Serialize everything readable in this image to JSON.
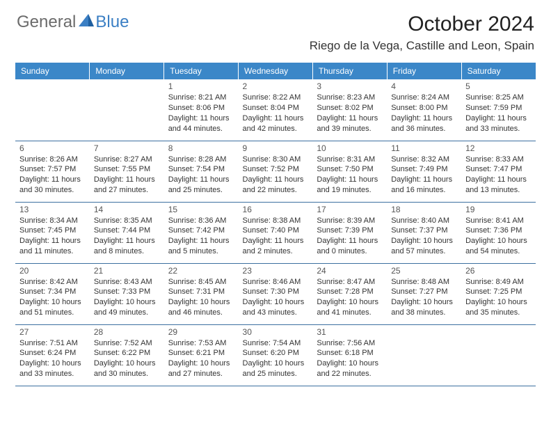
{
  "logo": {
    "general": "General",
    "blue": "Blue"
  },
  "title": "October 2024",
  "location": "Riego de la Vega, Castille and Leon, Spain",
  "colors": {
    "header_bg": "#3b87c8",
    "header_text": "#ffffff",
    "row_border": "#3b6fa0",
    "logo_gray": "#6b6b6b",
    "logo_blue": "#3b7fc4",
    "body_text": "#333333"
  },
  "weekdays": [
    "Sunday",
    "Monday",
    "Tuesday",
    "Wednesday",
    "Thursday",
    "Friday",
    "Saturday"
  ],
  "weeks": [
    [
      null,
      null,
      {
        "n": "1",
        "sr": "8:21 AM",
        "ss": "8:06 PM",
        "dl": "11 hours and 44 minutes."
      },
      {
        "n": "2",
        "sr": "8:22 AM",
        "ss": "8:04 PM",
        "dl": "11 hours and 42 minutes."
      },
      {
        "n": "3",
        "sr": "8:23 AM",
        "ss": "8:02 PM",
        "dl": "11 hours and 39 minutes."
      },
      {
        "n": "4",
        "sr": "8:24 AM",
        "ss": "8:00 PM",
        "dl": "11 hours and 36 minutes."
      },
      {
        "n": "5",
        "sr": "8:25 AM",
        "ss": "7:59 PM",
        "dl": "11 hours and 33 minutes."
      }
    ],
    [
      {
        "n": "6",
        "sr": "8:26 AM",
        "ss": "7:57 PM",
        "dl": "11 hours and 30 minutes."
      },
      {
        "n": "7",
        "sr": "8:27 AM",
        "ss": "7:55 PM",
        "dl": "11 hours and 27 minutes."
      },
      {
        "n": "8",
        "sr": "8:28 AM",
        "ss": "7:54 PM",
        "dl": "11 hours and 25 minutes."
      },
      {
        "n": "9",
        "sr": "8:30 AM",
        "ss": "7:52 PM",
        "dl": "11 hours and 22 minutes."
      },
      {
        "n": "10",
        "sr": "8:31 AM",
        "ss": "7:50 PM",
        "dl": "11 hours and 19 minutes."
      },
      {
        "n": "11",
        "sr": "8:32 AM",
        "ss": "7:49 PM",
        "dl": "11 hours and 16 minutes."
      },
      {
        "n": "12",
        "sr": "8:33 AM",
        "ss": "7:47 PM",
        "dl": "11 hours and 13 minutes."
      }
    ],
    [
      {
        "n": "13",
        "sr": "8:34 AM",
        "ss": "7:45 PM",
        "dl": "11 hours and 11 minutes."
      },
      {
        "n": "14",
        "sr": "8:35 AM",
        "ss": "7:44 PM",
        "dl": "11 hours and 8 minutes."
      },
      {
        "n": "15",
        "sr": "8:36 AM",
        "ss": "7:42 PM",
        "dl": "11 hours and 5 minutes."
      },
      {
        "n": "16",
        "sr": "8:38 AM",
        "ss": "7:40 PM",
        "dl": "11 hours and 2 minutes."
      },
      {
        "n": "17",
        "sr": "8:39 AM",
        "ss": "7:39 PM",
        "dl": "11 hours and 0 minutes."
      },
      {
        "n": "18",
        "sr": "8:40 AM",
        "ss": "7:37 PM",
        "dl": "10 hours and 57 minutes."
      },
      {
        "n": "19",
        "sr": "8:41 AM",
        "ss": "7:36 PM",
        "dl": "10 hours and 54 minutes."
      }
    ],
    [
      {
        "n": "20",
        "sr": "8:42 AM",
        "ss": "7:34 PM",
        "dl": "10 hours and 51 minutes."
      },
      {
        "n": "21",
        "sr": "8:43 AM",
        "ss": "7:33 PM",
        "dl": "10 hours and 49 minutes."
      },
      {
        "n": "22",
        "sr": "8:45 AM",
        "ss": "7:31 PM",
        "dl": "10 hours and 46 minutes."
      },
      {
        "n": "23",
        "sr": "8:46 AM",
        "ss": "7:30 PM",
        "dl": "10 hours and 43 minutes."
      },
      {
        "n": "24",
        "sr": "8:47 AM",
        "ss": "7:28 PM",
        "dl": "10 hours and 41 minutes."
      },
      {
        "n": "25",
        "sr": "8:48 AM",
        "ss": "7:27 PM",
        "dl": "10 hours and 38 minutes."
      },
      {
        "n": "26",
        "sr": "8:49 AM",
        "ss": "7:25 PM",
        "dl": "10 hours and 35 minutes."
      }
    ],
    [
      {
        "n": "27",
        "sr": "7:51 AM",
        "ss": "6:24 PM",
        "dl": "10 hours and 33 minutes."
      },
      {
        "n": "28",
        "sr": "7:52 AM",
        "ss": "6:22 PM",
        "dl": "10 hours and 30 minutes."
      },
      {
        "n": "29",
        "sr": "7:53 AM",
        "ss": "6:21 PM",
        "dl": "10 hours and 27 minutes."
      },
      {
        "n": "30",
        "sr": "7:54 AM",
        "ss": "6:20 PM",
        "dl": "10 hours and 25 minutes."
      },
      {
        "n": "31",
        "sr": "7:56 AM",
        "ss": "6:18 PM",
        "dl": "10 hours and 22 minutes."
      },
      null,
      null
    ]
  ],
  "labels": {
    "sunrise": "Sunrise:",
    "sunset": "Sunset:",
    "daylight": "Daylight:"
  }
}
